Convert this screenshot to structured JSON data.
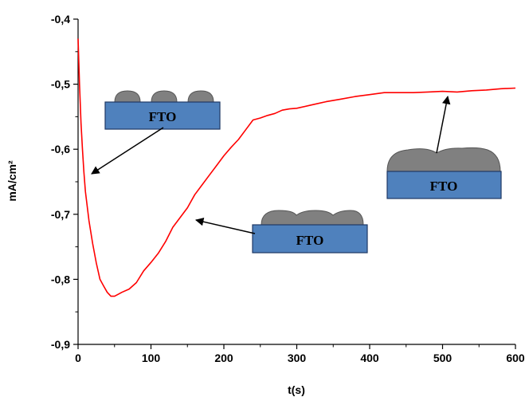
{
  "chart_data": {
    "type": "line",
    "xlabel": "t(s)",
    "ylabel": "mA/cm²",
    "xlim": [
      0,
      600
    ],
    "ylim": [
      -0.9,
      -0.4
    ],
    "x_ticks": [
      0,
      100,
      200,
      300,
      400,
      500,
      600
    ],
    "x_tick_labels": [
      "0",
      "100",
      "200",
      "300",
      "400",
      "500",
      "600"
    ],
    "y_ticks": [
      -0.4,
      -0.5,
      -0.6,
      -0.7,
      -0.8,
      -0.9
    ],
    "y_tick_labels": [
      "-0,4",
      "-0,5",
      "-0,6",
      "-0,7",
      "-0,8",
      "-0,9"
    ],
    "grid": false,
    "series": [
      {
        "color": "#ff0000",
        "x": [
          0,
          2,
          4,
          6,
          8,
          10,
          15,
          20,
          25,
          30,
          35,
          40,
          45,
          50,
          55,
          60,
          70,
          80,
          90,
          100,
          110,
          120,
          130,
          140,
          150,
          160,
          170,
          180,
          190,
          200,
          210,
          220,
          230,
          240,
          250,
          260,
          270,
          280,
          290,
          300,
          320,
          340,
          360,
          380,
          400,
          420,
          440,
          460,
          480,
          500,
          520,
          540,
          560,
          580,
          600
        ],
        "y": [
          -0.43,
          -0.5,
          -0.56,
          -0.6,
          -0.635,
          -0.665,
          -0.71,
          -0.745,
          -0.775,
          -0.8,
          -0.81,
          -0.82,
          -0.826,
          -0.826,
          -0.823,
          -0.82,
          -0.815,
          -0.805,
          -0.787,
          -0.774,
          -0.76,
          -0.742,
          -0.72,
          -0.705,
          -0.69,
          -0.67,
          -0.655,
          -0.64,
          -0.625,
          -0.61,
          -0.597,
          -0.585,
          -0.57,
          -0.555,
          -0.552,
          -0.548,
          -0.545,
          -0.54,
          -0.538,
          -0.537,
          -0.532,
          -0.527,
          -0.523,
          -0.519,
          -0.516,
          -0.513,
          -0.513,
          -0.513,
          -0.512,
          -0.511,
          -0.512,
          -0.51,
          -0.509,
          -0.507,
          -0.506
        ]
      }
    ],
    "annotations": [
      {
        "label": "FTO",
        "points_to": {
          "x": 18,
          "y": -0.64
        }
      },
      {
        "label": "FTO",
        "points_to": {
          "x": 160,
          "y": -0.705
        }
      },
      {
        "label": "FTO",
        "points_to": {
          "x": 508,
          "y": -0.513
        }
      }
    ]
  }
}
